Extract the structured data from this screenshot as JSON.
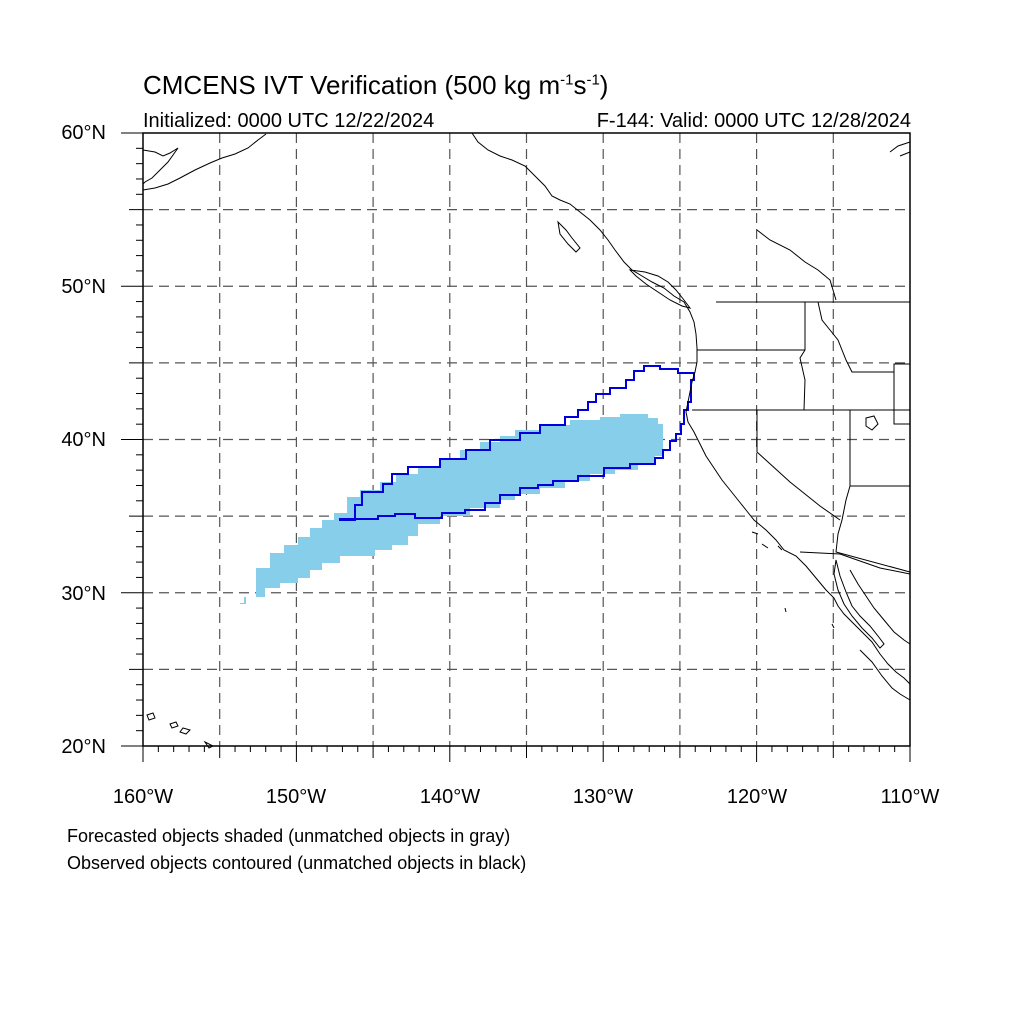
{
  "title": {
    "main": "CMCENS IVT Verification (500 kg m",
    "sup1": "-1",
    "mid": "s",
    "sup2": "-1",
    "end": ")"
  },
  "subtitle_left": "Initialized: 0000 UTC 12/22/2024",
  "subtitle_right": "F-144: Valid: 0000 UTC 12/28/2024",
  "lat_labels": [
    "60°N",
    "50°N",
    "40°N",
    "30°N",
    "20°N"
  ],
  "lon_labels": [
    "160°W",
    "150°W",
    "140°W",
    "130°W",
    "120°W",
    "110°W"
  ],
  "legend_notes": [
    "Forecasted objects shaded (unmatched objects in gray)",
    "Observed objects contoured (unmatched objects in black)"
  ],
  "map": {
    "lon_range": [
      -160,
      -110
    ],
    "lat_range": [
      20,
      60
    ],
    "grid_spacing_deg": 5,
    "grid_style": "dashed",
    "colors": {
      "forecast_fill": "#87ceeb",
      "observed_contour": "#0000dd",
      "coastline": "#000000",
      "grid": "#555555"
    }
  }
}
